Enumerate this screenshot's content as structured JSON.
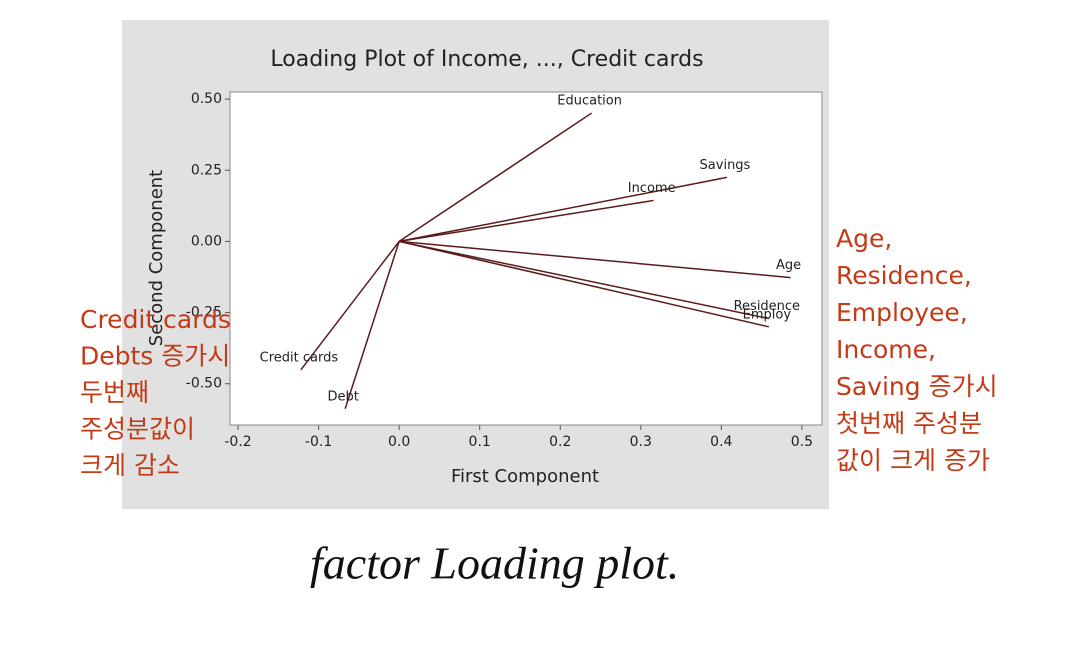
{
  "chart_data": {
    "type": "loading",
    "title": "Loading Plot of Income, ..., Credit cards",
    "xlabel": "First Component",
    "ylabel": "Second Component",
    "xlim": [
      -0.21,
      0.525
    ],
    "ylim": [
      -0.645,
      0.525
    ],
    "xticks": [
      -0.2,
      -0.1,
      {
        "value": 0,
        "label": "0.0"
      },
      0.1,
      0.2,
      0.3,
      0.4,
      0.5
    ],
    "yticks": [
      {
        "value": 0.5,
        "label": "0.50"
      },
      0.25,
      {
        "value": 0,
        "label": "0.00"
      },
      -0.25,
      {
        "value": -0.5,
        "label": "-0.50"
      }
    ],
    "color": "#5a1a1a",
    "series": [
      {
        "name": "Education",
        "x": 0.239,
        "y": 0.451
      },
      {
        "name": "Savings",
        "x": 0.407,
        "y": 0.225
      },
      {
        "name": "Income",
        "x": 0.316,
        "y": 0.144
      },
      {
        "name": "Age",
        "x": 0.486,
        "y": -0.127
      },
      {
        "name": "Residence",
        "x": 0.459,
        "y": -0.271
      },
      {
        "name": "Employ",
        "x": 0.459,
        "y": -0.3
      },
      {
        "name": "Credit cards",
        "x": -0.122,
        "y": -0.451
      },
      {
        "name": "Debt",
        "x": -0.067,
        "y": -0.588
      }
    ]
  },
  "annotations": {
    "left": [
      "Credit cards",
      "Debts 증가시",
      "두번째",
      "주성분값이",
      "크게 감소"
    ],
    "right": [
      "Age,",
      "Residence,",
      "Employee,",
      "Income,",
      "Saving 증가시",
      "첫번째 주성분",
      "값이 크게 증가"
    ],
    "handwriting": "factor Loading plot."
  }
}
